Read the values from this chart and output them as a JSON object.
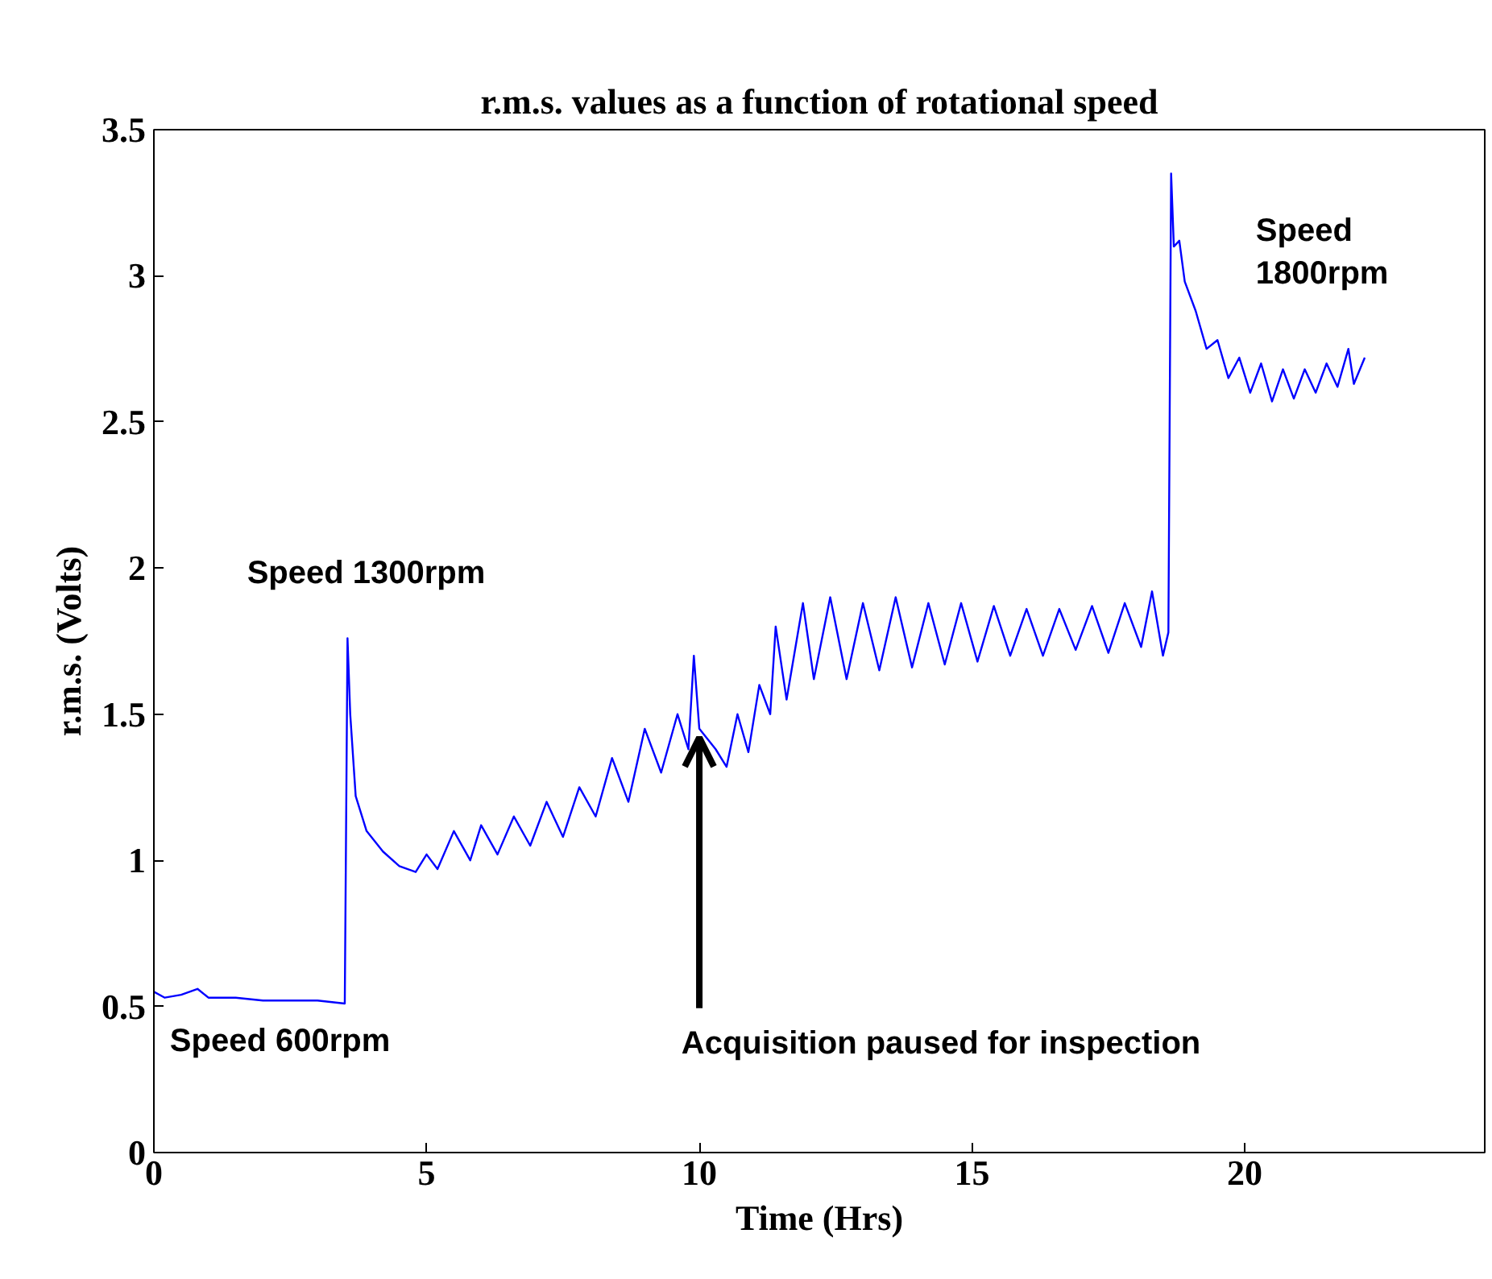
{
  "chart_data": {
    "type": "line",
    "title": "r.m.s. values as a function of rotational speed",
    "xlabel": "Time (Hrs)",
    "ylabel": "r.m.s. (Volts)",
    "xlim": [
      0,
      24.4
    ],
    "ylim": [
      0,
      3.5
    ],
    "xticks": [
      0,
      5,
      10,
      15,
      20
    ],
    "yticks": [
      0,
      0.5,
      1,
      1.5,
      2,
      2.5,
      3,
      3.5
    ],
    "grid": false,
    "line_style": "solid",
    "x": [
      0,
      0.2,
      0.5,
      0.8,
      1,
      1.5,
      2,
      2.5,
      3,
      3.5,
      3.55,
      3.6,
      3.7,
      3.9,
      4.2,
      4.5,
      4.8,
      5.0,
      5.2,
      5.5,
      5.8,
      6.0,
      6.3,
      6.6,
      6.9,
      7.2,
      7.5,
      7.8,
      8.1,
      8.4,
      8.7,
      9.0,
      9.3,
      9.6,
      9.8,
      9.9,
      10.0,
      10.3,
      10.5,
      10.7,
      10.9,
      11.1,
      11.3,
      11.4,
      11.6,
      11.9,
      12.1,
      12.4,
      12.7,
      13.0,
      13.3,
      13.6,
      13.9,
      14.2,
      14.5,
      14.8,
      15.1,
      15.4,
      15.7,
      16.0,
      16.3,
      16.6,
      16.9,
      17.2,
      17.5,
      17.8,
      18.1,
      18.3,
      18.5,
      18.6,
      18.65,
      18.7,
      18.8,
      18.9,
      19.1,
      19.3,
      19.5,
      19.7,
      19.9,
      20.1,
      20.3,
      20.5,
      20.7,
      20.9,
      21.1,
      21.3,
      21.5,
      21.7,
      21.9,
      22.0,
      22.2
    ],
    "series": [
      {
        "color": "#0000ff",
        "values": [
          0.55,
          0.53,
          0.54,
          0.56,
          0.53,
          0.53,
          0.52,
          0.52,
          0.52,
          0.51,
          1.76,
          1.5,
          1.22,
          1.1,
          1.03,
          0.98,
          0.96,
          1.02,
          0.97,
          1.1,
          1.0,
          1.12,
          1.02,
          1.15,
          1.05,
          1.2,
          1.08,
          1.25,
          1.15,
          1.35,
          1.2,
          1.45,
          1.3,
          1.5,
          1.38,
          1.7,
          1.45,
          1.38,
          1.32,
          1.5,
          1.37,
          1.6,
          1.5,
          1.8,
          1.55,
          1.88,
          1.62,
          1.9,
          1.62,
          1.88,
          1.65,
          1.9,
          1.66,
          1.88,
          1.67,
          1.88,
          1.68,
          1.87,
          1.7,
          1.86,
          1.7,
          1.86,
          1.72,
          1.87,
          1.71,
          1.88,
          1.73,
          1.92,
          1.7,
          1.78,
          3.35,
          3.1,
          3.12,
          2.98,
          2.88,
          2.75,
          2.78,
          2.65,
          2.72,
          2.6,
          2.7,
          2.57,
          2.68,
          2.58,
          2.68,
          2.6,
          2.7,
          2.62,
          2.75,
          2.63,
          2.72
        ]
      }
    ],
    "annotations": [
      "Speed 1300rpm",
      "Speed 600rpm",
      "Speed\n1800rpm",
      {
        "text": "Acquisition paused for inspection",
        "x": 10,
        "y": 1.42
      }
    ]
  }
}
